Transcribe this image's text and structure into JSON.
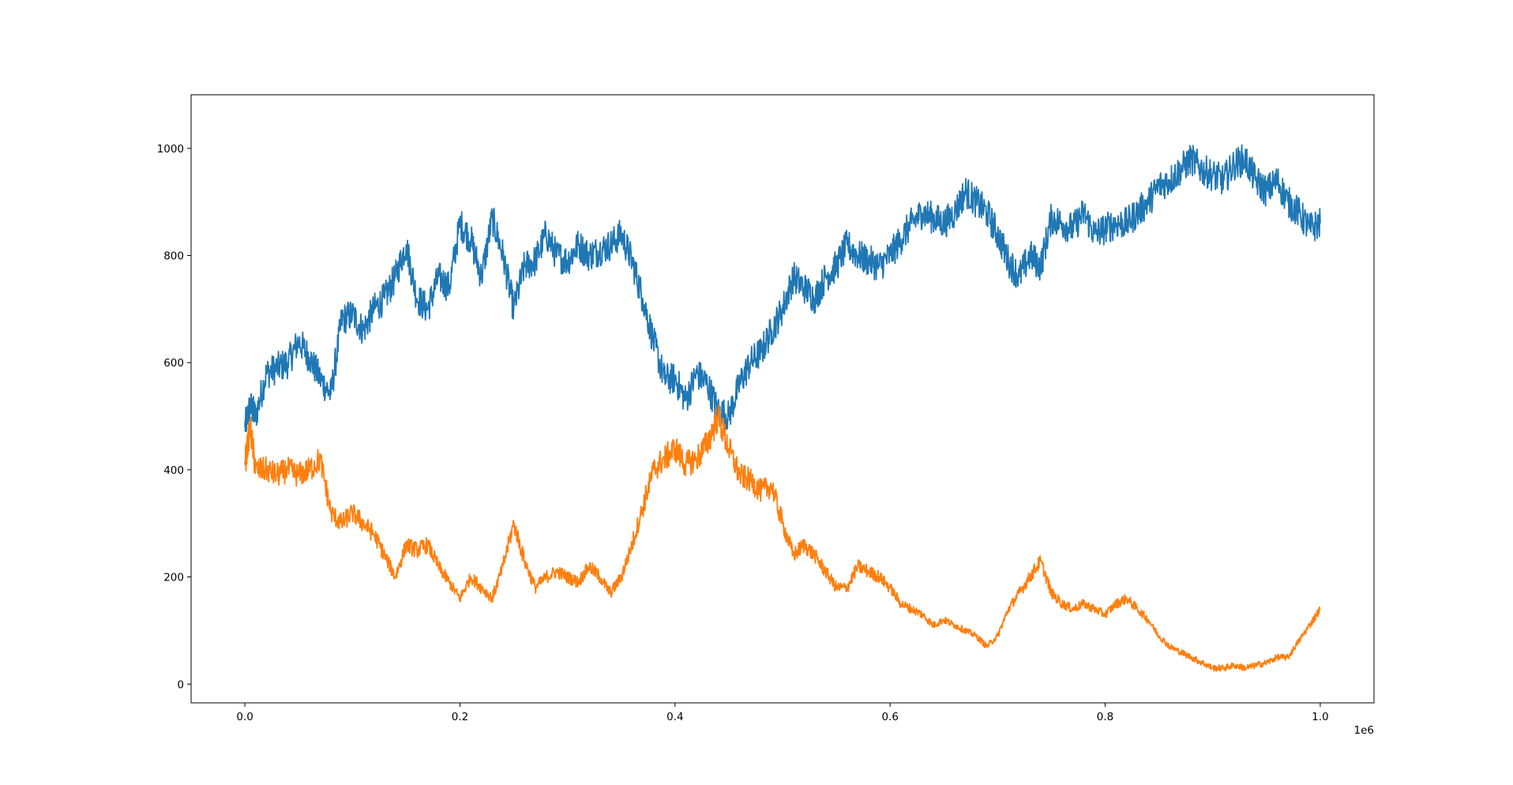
{
  "chart_data": {
    "type": "line",
    "title": "",
    "xlabel": "",
    "ylabel": "",
    "x_offset_label": "1e6",
    "xlim": [
      -0.05,
      1.05
    ],
    "ylim": [
      -35,
      1100
    ],
    "x_ticks": [
      {
        "value": 0.0,
        "label": "0.0"
      },
      {
        "value": 0.2,
        "label": "0.2"
      },
      {
        "value": 0.4,
        "label": "0.4"
      },
      {
        "value": 0.6,
        "label": "0.6"
      },
      {
        "value": 0.8,
        "label": "0.8"
      },
      {
        "value": 1.0,
        "label": "1.0"
      }
    ],
    "y_ticks": [
      {
        "value": 0,
        "label": "0"
      },
      {
        "value": 200,
        "label": "200"
      },
      {
        "value": 400,
        "label": "400"
      },
      {
        "value": 600,
        "label": "600"
      },
      {
        "value": 800,
        "label": "800"
      },
      {
        "value": 1000,
        "label": "1000"
      }
    ],
    "grid": false,
    "legend": "none",
    "series": [
      {
        "color": "#1f77b4",
        "x": [
          0.0,
          0.005,
          0.01,
          0.02,
          0.03,
          0.04,
          0.05,
          0.06,
          0.07,
          0.08,
          0.09,
          0.1,
          0.11,
          0.12,
          0.13,
          0.14,
          0.15,
          0.16,
          0.17,
          0.18,
          0.19,
          0.2,
          0.21,
          0.22,
          0.23,
          0.24,
          0.25,
          0.26,
          0.27,
          0.28,
          0.29,
          0.3,
          0.31,
          0.32,
          0.33,
          0.34,
          0.35,
          0.36,
          0.37,
          0.38,
          0.39,
          0.4,
          0.41,
          0.42,
          0.43,
          0.44,
          0.45,
          0.46,
          0.47,
          0.48,
          0.49,
          0.5,
          0.51,
          0.52,
          0.53,
          0.54,
          0.55,
          0.56,
          0.57,
          0.58,
          0.59,
          0.6,
          0.61,
          0.62,
          0.63,
          0.64,
          0.65,
          0.66,
          0.67,
          0.68,
          0.69,
          0.7,
          0.71,
          0.72,
          0.73,
          0.74,
          0.75,
          0.76,
          0.77,
          0.78,
          0.79,
          0.8,
          0.81,
          0.82,
          0.83,
          0.84,
          0.85,
          0.86,
          0.87,
          0.88,
          0.89,
          0.9,
          0.91,
          0.92,
          0.93,
          0.94,
          0.95,
          0.96,
          0.97,
          0.98,
          0.99,
          1.0
        ],
        "y": [
          480,
          520,
          500,
          580,
          590,
          600,
          640,
          610,
          570,
          540,
          680,
          690,
          660,
          700,
          720,
          760,
          820,
          720,
          700,
          760,
          740,
          860,
          830,
          760,
          870,
          800,
          700,
          780,
          790,
          840,
          800,
          790,
          820,
          800,
          810,
          820,
          840,
          790,
          720,
          640,
          570,
          570,
          530,
          580,
          560,
          510,
          500,
          560,
          600,
          620,
          660,
          700,
          760,
          740,
          720,
          760,
          780,
          820,
          800,
          790,
          780,
          800,
          830,
          860,
          880,
          870,
          860,
          880,
          920,
          900,
          880,
          840,
          790,
          760,
          800,
          780,
          870,
          860,
          850,
          880,
          840,
          850,
          860,
          860,
          880,
          900,
          930,
          940,
          960,
          980,
          960,
          950,
          940,
          970,
          980,
          940,
          920,
          940,
          900,
          880,
          850,
          860
        ]
      },
      {
        "color": "#ff7f0e",
        "x": [
          0.0,
          0.005,
          0.01,
          0.02,
          0.03,
          0.04,
          0.05,
          0.06,
          0.07,
          0.08,
          0.09,
          0.1,
          0.11,
          0.12,
          0.13,
          0.14,
          0.15,
          0.16,
          0.17,
          0.18,
          0.19,
          0.2,
          0.21,
          0.22,
          0.23,
          0.24,
          0.25,
          0.26,
          0.27,
          0.28,
          0.29,
          0.3,
          0.31,
          0.32,
          0.33,
          0.34,
          0.35,
          0.36,
          0.37,
          0.38,
          0.39,
          0.4,
          0.41,
          0.42,
          0.43,
          0.44,
          0.45,
          0.46,
          0.47,
          0.48,
          0.49,
          0.5,
          0.51,
          0.52,
          0.53,
          0.54,
          0.55,
          0.56,
          0.57,
          0.58,
          0.59,
          0.6,
          0.61,
          0.62,
          0.63,
          0.64,
          0.65,
          0.66,
          0.67,
          0.68,
          0.69,
          0.7,
          0.71,
          0.72,
          0.73,
          0.74,
          0.75,
          0.76,
          0.77,
          0.78,
          0.79,
          0.8,
          0.81,
          0.82,
          0.83,
          0.84,
          0.85,
          0.86,
          0.87,
          0.88,
          0.89,
          0.9,
          0.91,
          0.92,
          0.93,
          0.94,
          0.95,
          0.96,
          0.97,
          0.98,
          0.99,
          1.0
        ],
        "y": [
          410,
          480,
          400,
          400,
          390,
          400,
          390,
          400,
          420,
          320,
          300,
          320,
          300,
          280,
          240,
          200,
          260,
          250,
          260,
          220,
          190,
          160,
          200,
          180,
          160,
          220,
          300,
          230,
          180,
          200,
          210,
          200,
          190,
          220,
          200,
          170,
          200,
          260,
          330,
          400,
          420,
          440,
          410,
          420,
          450,
          500,
          440,
          390,
          380,
          360,
          370,
          300,
          240,
          260,
          240,
          210,
          180,
          180,
          220,
          210,
          200,
          180,
          150,
          140,
          130,
          110,
          120,
          110,
          100,
          90,
          70,
          90,
          140,
          170,
          200,
          230,
          170,
          150,
          140,
          150,
          140,
          130,
          150,
          160,
          140,
          120,
          90,
          70,
          60,
          50,
          40,
          30,
          30,
          35,
          30,
          35,
          40,
          50,
          50,
          80,
          110,
          140
        ]
      }
    ]
  }
}
